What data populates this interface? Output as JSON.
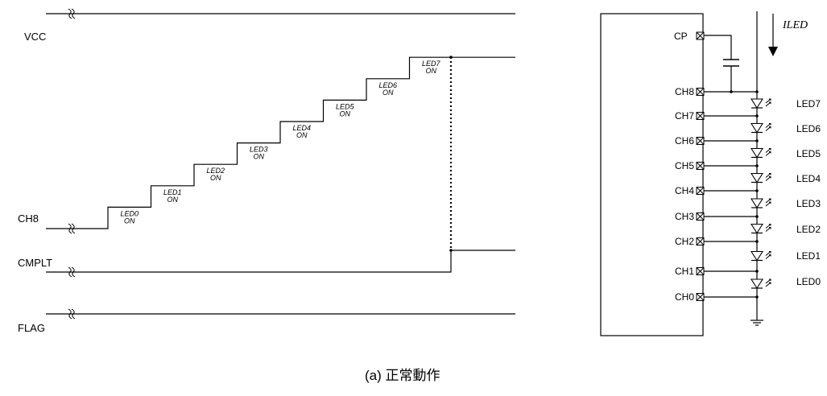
{
  "timing": {
    "signals": [
      "VCC",
      "CH8",
      "CMPLT",
      "FLAG"
    ],
    "steps": [
      {
        "led": "LED0",
        "state": "ON"
      },
      {
        "led": "LED1",
        "state": "ON"
      },
      {
        "led": "LED2",
        "state": "ON"
      },
      {
        "led": "LED3",
        "state": "ON"
      },
      {
        "led": "LED4",
        "state": "ON"
      },
      {
        "led": "LED5",
        "state": "ON"
      },
      {
        "led": "LED6",
        "state": "ON"
      },
      {
        "led": "LED7",
        "state": "ON"
      }
    ]
  },
  "circuit": {
    "cp_label": "CP",
    "current_label": "ILED",
    "channels": [
      "CH8",
      "CH7",
      "CH6",
      "CH5",
      "CH4",
      "CH3",
      "CH2",
      "CH1",
      "CH0"
    ],
    "leds": [
      "LED7",
      "LED6",
      "LED5",
      "LED4",
      "LED3",
      "LED2",
      "LED1",
      "LED0"
    ]
  },
  "caption": "(a)  正常動作"
}
